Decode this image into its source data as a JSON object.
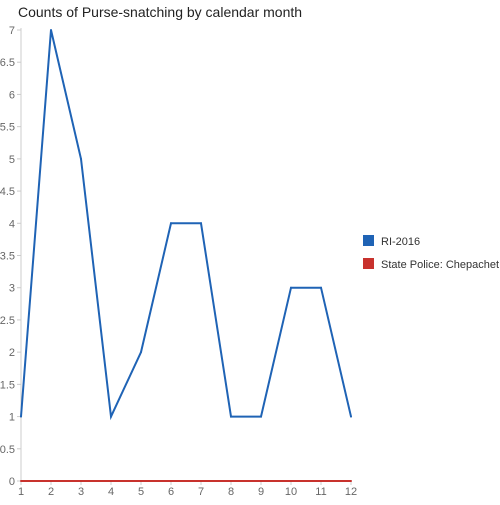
{
  "chart_data": {
    "type": "line",
    "title": "Counts of Purse-snatching by calendar month",
    "xlabel": "",
    "ylabel": "",
    "x": [
      1,
      2,
      3,
      4,
      5,
      6,
      7,
      8,
      9,
      10,
      11,
      12
    ],
    "xlim": [
      1,
      12
    ],
    "ylim": [
      0,
      7
    ],
    "x_ticks": [
      "1",
      "2",
      "3",
      "4",
      "5",
      "6",
      "7",
      "8",
      "9",
      "10",
      "11",
      "12"
    ],
    "y_ticks": [
      "0",
      "0.5",
      "1",
      "1.5",
      "2",
      "2.5",
      "3",
      "3.5",
      "4",
      "4.5",
      "5",
      "5.5",
      "6",
      "6.5",
      "7"
    ],
    "grid": false,
    "legend_position": "right",
    "series": [
      {
        "name": "RI-2016",
        "color": "#1f63b5",
        "values": [
          1,
          7,
          5,
          1,
          2,
          4,
          4,
          1,
          1,
          3,
          3,
          1
        ]
      },
      {
        "name": "State Police: Chepachet",
        "color": "#c8322d",
        "values": [
          0,
          0,
          0,
          0,
          0,
          0,
          0,
          0,
          0,
          0,
          0,
          0
        ]
      }
    ]
  }
}
